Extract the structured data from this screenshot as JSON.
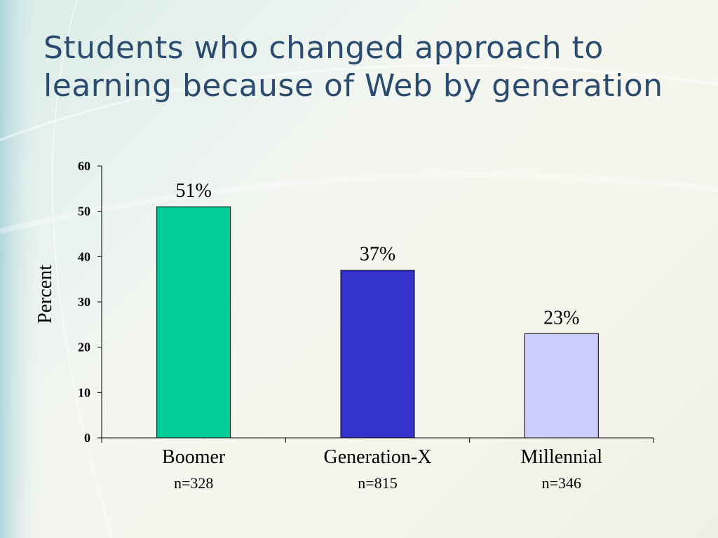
{
  "slide": {
    "title": "Students who changed approach to learning because of Web by generation"
  },
  "chart_data": {
    "type": "bar",
    "title": "",
    "xlabel": "",
    "ylabel": "Percent",
    "categories": [
      "Boomer",
      "Generation-X",
      "Millennial"
    ],
    "category_sublabels": [
      "n=328",
      "n=815",
      "n=346"
    ],
    "values": [
      51,
      37,
      23
    ],
    "data_labels": [
      "51%",
      "37%",
      "23%"
    ],
    "colors": [
      "#00cc99",
      "#3333cc",
      "#ccccff"
    ],
    "ylim": [
      0,
      60
    ],
    "yticks": [
      0,
      10,
      20,
      30,
      40,
      50,
      60
    ],
    "grid": false,
    "legend": "none"
  }
}
